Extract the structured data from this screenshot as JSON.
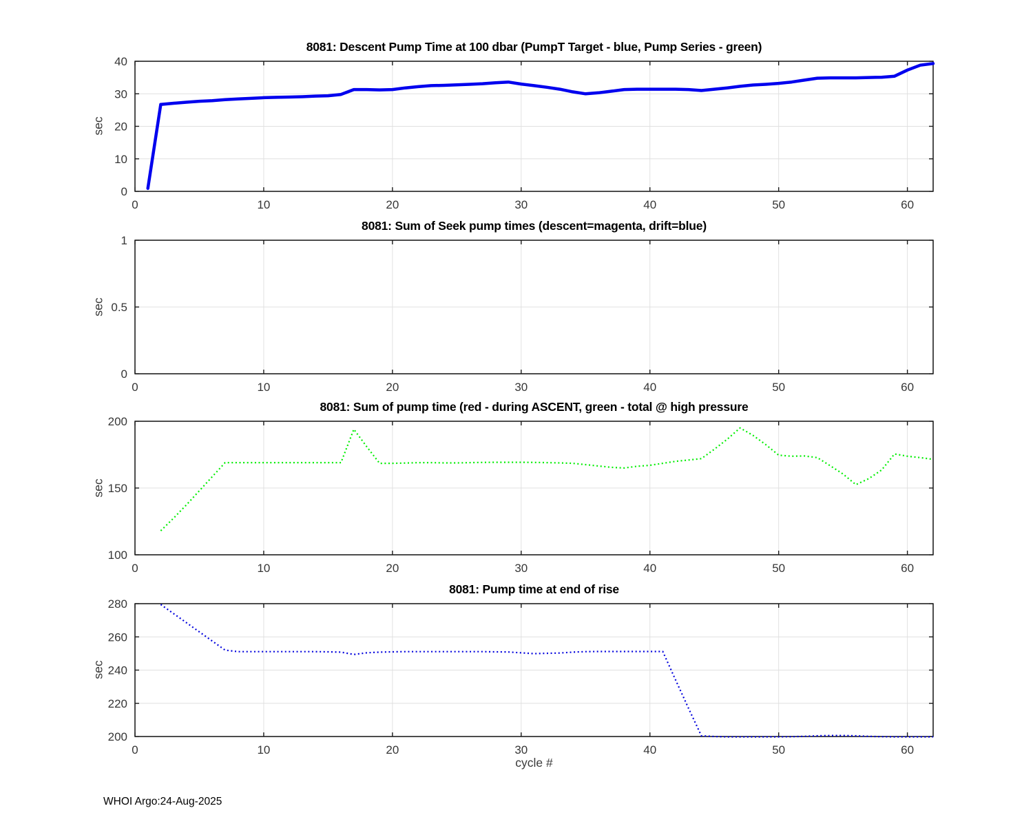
{
  "figure": {
    "footer": "WHOI Argo:24-Aug-2025",
    "xlabel": "cycle #"
  },
  "chart_data": [
    {
      "type": "line",
      "title": "8081: Descent Pump Time at 100 dbar (PumpT Target - blue, Pump Series - green)",
      "ylabel": "sec",
      "xlim": [
        0,
        62
      ],
      "ylim": [
        0,
        40
      ],
      "xticks": [
        0,
        10,
        20,
        30,
        40,
        50,
        60
      ],
      "yticks": [
        0,
        10,
        20,
        30,
        40
      ],
      "grid": true,
      "legend_position": "none",
      "series": [
        {
          "name": "PumpT Target",
          "color": "#0000ee",
          "line_style": "solid",
          "line_width": 4.5,
          "x": [
            1,
            2,
            3,
            4,
            5,
            6,
            7,
            8,
            9,
            10,
            11,
            12,
            13,
            14,
            15,
            16,
            17,
            18,
            19,
            20,
            21,
            22,
            23,
            24,
            25,
            26,
            27,
            28,
            29,
            30,
            31,
            32,
            33,
            34,
            35,
            36,
            37,
            38,
            39,
            40,
            41,
            42,
            43,
            44,
            45,
            46,
            47,
            48,
            49,
            50,
            51,
            52,
            53,
            54,
            55,
            56,
            57,
            58,
            59,
            60,
            61,
            62
          ],
          "y": [
            0.9,
            26.7,
            27.1,
            27.4,
            27.7,
            27.9,
            28.2,
            28.4,
            28.6,
            28.8,
            28.9,
            29.0,
            29.1,
            29.3,
            29.4,
            29.8,
            31.3,
            31.3,
            31.2,
            31.3,
            31.8,
            32.2,
            32.5,
            32.6,
            32.75,
            32.9,
            33.1,
            33.4,
            33.6,
            33.0,
            32.5,
            32.0,
            31.4,
            30.6,
            30.0,
            30.3,
            30.8,
            31.3,
            31.4,
            31.4,
            31.4,
            31.4,
            31.3,
            31.0,
            31.4,
            31.8,
            32.3,
            32.7,
            32.9,
            33.2,
            33.6,
            34.2,
            34.8,
            34.9,
            34.9,
            34.9,
            35.0,
            35.1,
            35.4,
            37.3,
            38.8,
            39.3
          ]
        }
      ]
    },
    {
      "type": "line",
      "title": "8081: Sum of Seek pump times (descent=magenta, drift=blue)",
      "ylabel": "sec",
      "xlim": [
        0,
        62
      ],
      "ylim": [
        0,
        1
      ],
      "xticks": [
        0,
        10,
        20,
        30,
        40,
        50,
        60
      ],
      "yticks": [
        0,
        0.5,
        1
      ],
      "grid": true,
      "legend_position": "none",
      "series": []
    },
    {
      "type": "line",
      "title": "8081: Sum of pump time (red - during ASCENT, green - total @ high pressure",
      "ylabel": "sec",
      "xlim": [
        0,
        62
      ],
      "ylim": [
        100,
        200
      ],
      "xticks": [
        0,
        10,
        20,
        30,
        40,
        50,
        60
      ],
      "yticks": [
        100,
        150,
        200
      ],
      "grid": true,
      "legend_position": "none",
      "series": [
        {
          "name": "total @ high pressure",
          "color": "#00ee00",
          "line_style": "dotted",
          "line_width": 2.2,
          "x": [
            2,
            3,
            4,
            5,
            6,
            7,
            8,
            9,
            10,
            11,
            12,
            13,
            14,
            15,
            16,
            17,
            18,
            19,
            20,
            21,
            22,
            23,
            24,
            25,
            26,
            27,
            28,
            29,
            30,
            31,
            32,
            33,
            34,
            35,
            36,
            37,
            38,
            39,
            40,
            41,
            42,
            43,
            44,
            45,
            46,
            47,
            48,
            49,
            50,
            51,
            52,
            53,
            54,
            55,
            56,
            57,
            58,
            59,
            60,
            61,
            62
          ],
          "y": [
            118,
            127.5,
            137.5,
            148,
            158.5,
            169,
            169,
            169,
            169,
            169,
            169,
            169,
            169,
            169,
            169,
            194,
            181,
            168.5,
            168.5,
            168.7,
            169,
            169,
            168.8,
            168.8,
            169,
            169.2,
            169.3,
            169.3,
            169.3,
            169.2,
            169,
            168.8,
            168.5,
            167.5,
            166.5,
            165.5,
            165,
            166.3,
            167,
            168.5,
            170,
            171,
            172,
            179,
            186.5,
            195,
            189.5,
            182.5,
            174.6,
            173.8,
            174,
            172.8,
            166.7,
            160.5,
            152.5,
            157,
            163.5,
            175.5,
            173.8,
            172.8,
            171.5
          ]
        }
      ]
    },
    {
      "type": "line",
      "title": "8081: Pump time at end of rise",
      "ylabel": "sec",
      "xlim": [
        0,
        62
      ],
      "ylim": [
        200,
        280
      ],
      "xticks": [
        0,
        10,
        20,
        30,
        40,
        50,
        60
      ],
      "yticks": [
        200,
        220,
        240,
        260,
        280
      ],
      "grid": true,
      "legend_position": "none",
      "series": [
        {
          "name": "pump time at end of rise",
          "color": "#0000dd",
          "line_style": "dotted",
          "line_width": 2.2,
          "x": [
            2,
            3,
            4,
            5,
            6,
            7,
            8,
            9,
            10,
            11,
            12,
            13,
            14,
            15,
            16,
            17,
            18,
            19,
            20,
            21,
            22,
            23,
            24,
            25,
            26,
            27,
            28,
            29,
            30,
            31,
            32,
            33,
            34,
            35,
            36,
            37,
            38,
            39,
            40,
            41,
            42,
            43,
            44,
            45,
            46,
            47,
            48,
            49,
            50,
            51,
            52,
            53,
            54,
            55,
            56,
            57,
            58,
            59,
            60,
            61,
            62
          ],
          "y": [
            279.5,
            274,
            268.5,
            263,
            257.5,
            252,
            251.1,
            251.1,
            251.1,
            251.1,
            251.1,
            251.1,
            251.1,
            251,
            250.8,
            249.4,
            250.4,
            250.8,
            251,
            251.1,
            251.1,
            251.1,
            251.1,
            251.1,
            251.1,
            251.1,
            251,
            250.9,
            250.4,
            249.9,
            250.1,
            250.3,
            250.8,
            251.1,
            251.2,
            251.2,
            251.2,
            251.2,
            251.2,
            251.2,
            234,
            217,
            200.4,
            200,
            199.8,
            199.8,
            199.8,
            199.8,
            199.8,
            199.9,
            200.1,
            200.4,
            200.6,
            200.6,
            200.4,
            200.1,
            199.9,
            199.8,
            199.8,
            199.8,
            199.8
          ]
        }
      ]
    }
  ]
}
